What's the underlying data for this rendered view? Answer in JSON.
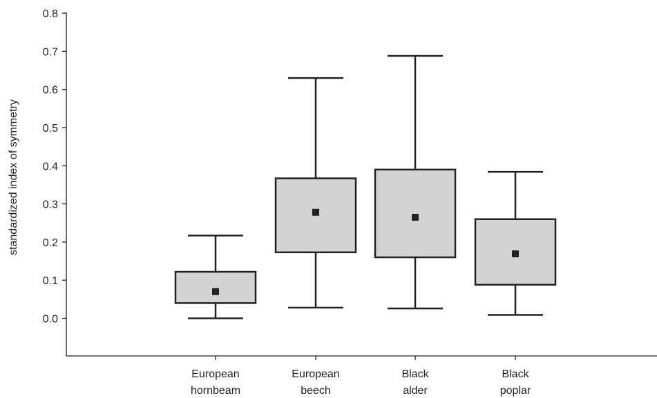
{
  "chart_data": {
    "type": "box",
    "ylabel": "standardized index of symmetry",
    "ylim": [
      -0.1,
      0.8
    ],
    "yticks": [
      "0.0",
      "0.1",
      "0.2",
      "0.3",
      "0.4",
      "0.5",
      "0.6",
      "0.7",
      "0.8"
    ],
    "ytick_values": [
      0.0,
      0.1,
      0.2,
      0.3,
      0.4,
      0.5,
      0.6,
      0.7,
      0.8
    ],
    "grid": false,
    "categories": [
      {
        "line1": "European",
        "line2": "hornbeam"
      },
      {
        "line1": "European",
        "line2": "beech"
      },
      {
        "line1": "Black",
        "line2": "alder"
      },
      {
        "line1": "Black",
        "line2": "poplar"
      }
    ],
    "boxes": [
      {
        "min": 0.0,
        "q1": 0.04,
        "median": 0.07,
        "q3": 0.122,
        "max": 0.217
      },
      {
        "min": 0.028,
        "q1": 0.173,
        "median": 0.278,
        "q3": 0.367,
        "max": 0.63
      },
      {
        "min": 0.026,
        "q1": 0.16,
        "median": 0.265,
        "q3": 0.39,
        "max": 0.688
      },
      {
        "min": 0.009,
        "q1": 0.088,
        "median": 0.169,
        "q3": 0.26,
        "max": 0.384
      }
    ],
    "colors": {
      "box_fill": "#d3d3d3",
      "line": "#222222"
    }
  }
}
